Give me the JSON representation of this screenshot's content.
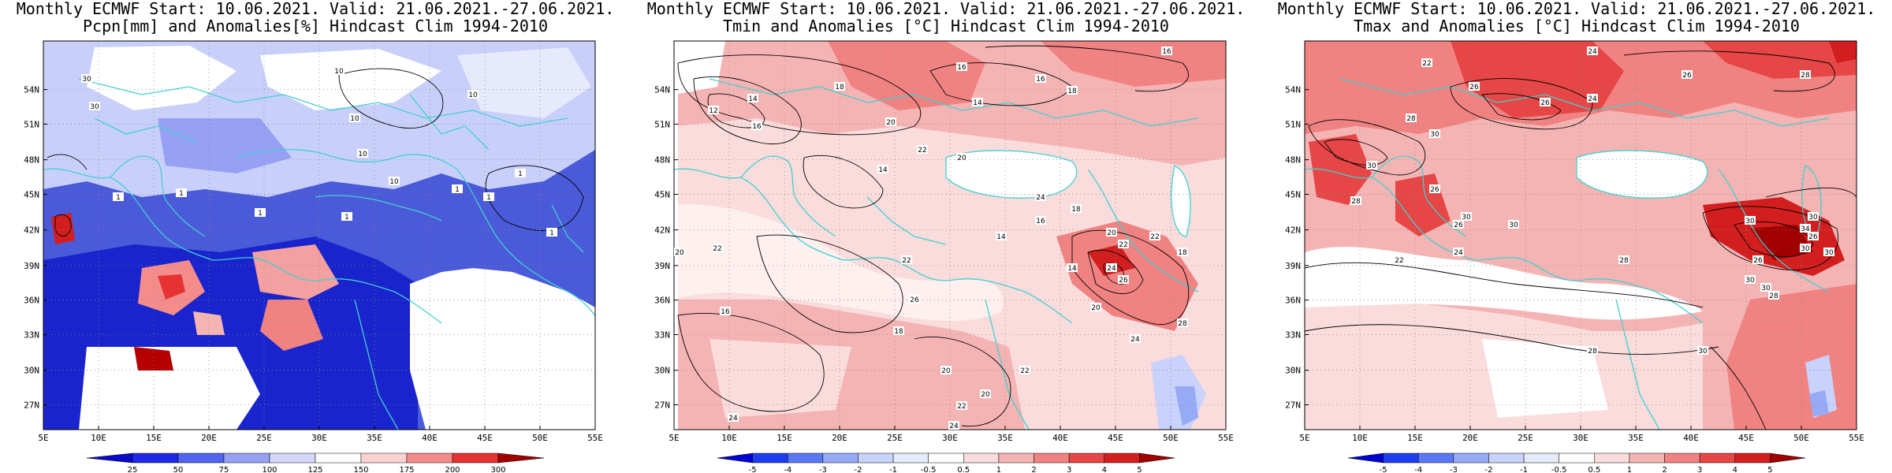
{
  "panels": [
    {
      "title1": "Monthly ECMWF Start: 10.06.2021. Valid: 21.06.2021.-27.06.2021.",
      "title2": "Pcpn[mm] and Anomalies[%] Hindcast Clim 1994-2010",
      "lat_ticks": [
        "54N",
        "51N",
        "48N",
        "45N",
        "42N",
        "39N",
        "36N",
        "33N",
        "30N",
        "27N"
      ],
      "lon_ticks": [
        "5E",
        "10E",
        "15E",
        "20E",
        "25E",
        "30E",
        "35E",
        "40E",
        "45E",
        "50E",
        "55E"
      ],
      "colorbar": {
        "labels": [
          "25",
          "50",
          "75",
          "100",
          "125",
          "150",
          "175",
          "200",
          "300"
        ],
        "colors": [
          "#0a0ac8",
          "#1e28e6",
          "#5064f0",
          "#96a0f5",
          "#d2d7fa",
          "#ffffff",
          "#fad2d2",
          "#f58c8c",
          "#e63232",
          "#a00000"
        ]
      },
      "contour_labels": [
        "10",
        "10",
        "30",
        "10",
        "30",
        "10",
        "10",
        "1",
        "1",
        "1",
        "1",
        "1",
        "1",
        "1",
        "1"
      ]
    },
    {
      "title1": "Monthly ECMWF Start: 10.06.2021. Valid: 21.06.2021.-27.06.2021.",
      "title2": "Tmin and Anomalies [°C] Hindcast Clim 1994-2010",
      "lat_ticks": [
        "54N",
        "51N",
        "48N",
        "45N",
        "42N",
        "39N",
        "36N",
        "33N",
        "30N",
        "27N"
      ],
      "lon_ticks": [
        "5E",
        "10E",
        "15E",
        "20E",
        "25E",
        "30E",
        "35E",
        "40E",
        "45E",
        "50E",
        "55E"
      ],
      "colorbar": {
        "labels": [
          "-5",
          "-4",
          "-3",
          "-2",
          "-1",
          "-0.5",
          "0.5",
          "1",
          "2",
          "3",
          "4",
          "5"
        ],
        "colors": [
          "#0000d2",
          "#1e3cf0",
          "#5a78f5",
          "#96aaf5",
          "#c8d2fa",
          "#e6ebfa",
          "#ffffff",
          "#fadcdc",
          "#f5b4b4",
          "#f08282",
          "#e64646",
          "#d21e1e",
          "#a00000"
        ]
      },
      "contour_labels": [
        "16",
        "16",
        "16",
        "14",
        "18",
        "12",
        "14",
        "16",
        "18",
        "20",
        "22",
        "20",
        "24",
        "14",
        "16",
        "18",
        "20",
        "22",
        "24",
        "26",
        "22",
        "18",
        "14",
        "20",
        "24",
        "28",
        "22",
        "20",
        "22",
        "24",
        "18",
        "20",
        "26",
        "22",
        "14",
        "22",
        "16",
        "20",
        "24"
      ]
    },
    {
      "title1": "Monthly ECMWF Start: 10.06.2021. Valid: 21.06.2021.-27.06.2021.",
      "title2": "Tmax and Anomalies [°C] Hindcast Clim 1994-2010",
      "lat_ticks": [
        "54N",
        "51N",
        "48N",
        "45N",
        "42N",
        "39N",
        "36N",
        "33N",
        "30N",
        "27N"
      ],
      "lon_ticks": [
        "5E",
        "10E",
        "15E",
        "20E",
        "25E",
        "30E",
        "35E",
        "40E",
        "45E",
        "50E",
        "55E"
      ],
      "colorbar": {
        "labels": [
          "-5",
          "-4",
          "-3",
          "-2",
          "-1",
          "-0.5",
          "0.5",
          "1",
          "2",
          "3",
          "4",
          "5"
        ],
        "colors": [
          "#0000d2",
          "#1e3cf0",
          "#5a78f5",
          "#96aaf5",
          "#c8d2fa",
          "#e6ebfa",
          "#ffffff",
          "#fadcdc",
          "#f5b4b4",
          "#f08282",
          "#e64646",
          "#d21e1e",
          "#a00000"
        ]
      },
      "contour_labels": [
        "24",
        "26",
        "28",
        "22",
        "26",
        "24",
        "26",
        "30",
        "28",
        "30",
        "28",
        "26",
        "30",
        "24",
        "22",
        "26",
        "30",
        "28",
        "30",
        "34",
        "30",
        "30",
        "26",
        "30",
        "28",
        "30",
        "26",
        "30",
        "28",
        "30"
      ]
    }
  ]
}
